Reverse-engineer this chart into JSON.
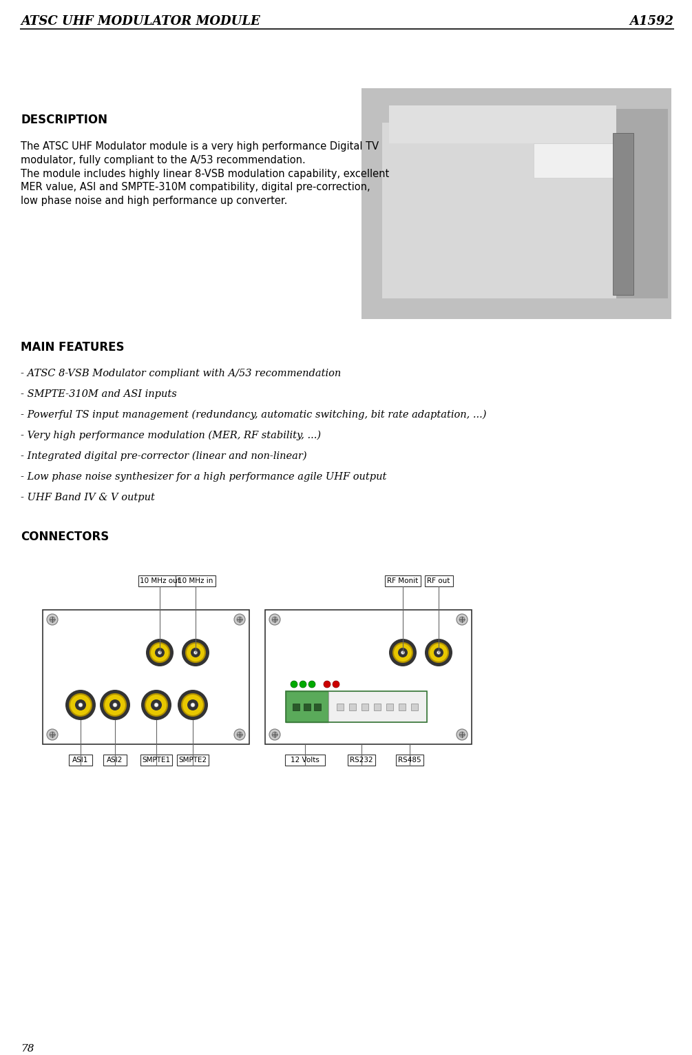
{
  "page_number": "78",
  "header_left": "ATSC UHF MODULATOR MODULE",
  "header_right": "A1592",
  "bg_color": "#ffffff",
  "text_color": "#000000",
  "section_description": "DESCRIPTION",
  "desc_para1": "The ATSC UHF Modulator module is a very high performance Digital TV\nmodulator, fully compliant to the A/53 recommendation.\nThe module includes highly linear 8-VSB modulation capability, excellent\nMER value, ASI and SMPTE-310M compatibility, digital pre-correction,\nlow phase noise and high performance up converter.",
  "section_features": "MAIN FEATURES",
  "features": [
    "- ATSC 8-VSB Modulator compliant with A/53 recommendation",
    "- SMPTE-310M and ASI inputs",
    "- Powerful TS input management (redundancy, automatic switching, bit rate adaptation, ...)",
    "- Very high performance modulation (MER, RF stability, ...)",
    "- Integrated digital pre-corrector (linear and non-linear)",
    "- Low phase noise synthesizer for a high performance agile UHF output",
    "- UHF Band IV & V output"
  ],
  "section_connectors": "CONNECTORS",
  "connector_labels_left": [
    "ASI1",
    "ASI2",
    "SMPTE1",
    "SMPTE2"
  ],
  "connector_labels_left_top": [
    "10 MHz out",
    "10 MHz in"
  ],
  "connector_labels_right_bottom": [
    "12 Volts",
    "RS232",
    "RS485"
  ],
  "connector_labels_right_top": [
    "RF Monit",
    "RF out"
  ],
  "bnc_yellow": "#e8c800",
  "bnc_yellow_dark": "#b09000",
  "bnc_ring": "#333333",
  "bnc_center": "#ffffff",
  "screw_outer": "#aaaaaa",
  "screw_inner": "#888888",
  "panel_border": "#333333",
  "green_dot_color": "#00aa00",
  "red_dot_color": "#cc0000",
  "terminal_green": "#5aaa5a",
  "terminal_green_dark": "#3a7a3a",
  "terminal_white": "#f0f0f0",
  "label_box_border": "#333333"
}
